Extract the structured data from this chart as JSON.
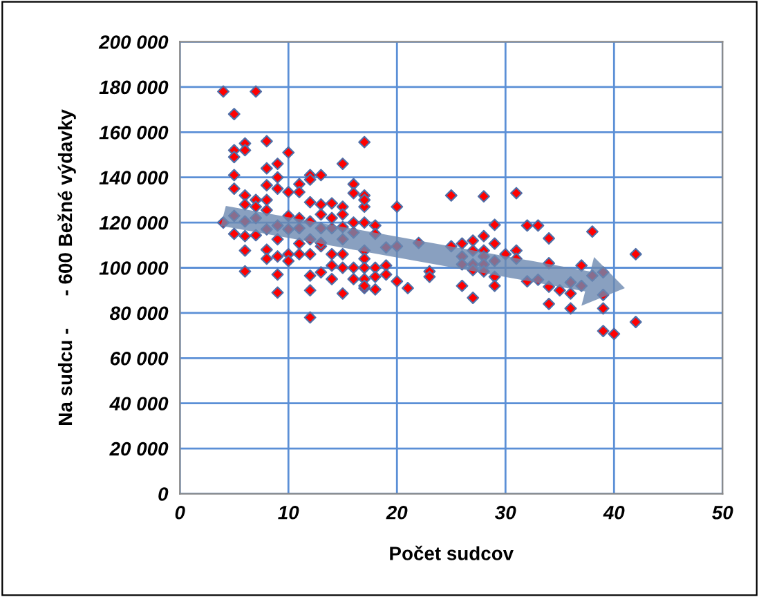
{
  "chart_data": {
    "type": "scatter",
    "xlabel": "Počet sudcov",
    "ylabel": "Na sudcu -      - 600 Bežné výdavky",
    "xlim": [
      0,
      50
    ],
    "xticks": [
      0,
      10,
      20,
      30,
      40,
      50
    ],
    "ylim": [
      0,
      200000
    ],
    "yticks": [
      {
        "value": 0,
        "label": "0"
      },
      {
        "value": 20000,
        "label": "20 000"
      },
      {
        "value": 40000,
        "label": "40 000"
      },
      {
        "value": 60000,
        "label": "60 000"
      },
      {
        "value": 80000,
        "label": "80 000"
      },
      {
        "value": 100000,
        "label": "100 000"
      },
      {
        "value": 120000,
        "label": "120 000"
      },
      {
        "value": 140000,
        "label": "140 000"
      },
      {
        "value": 160000,
        "label": "160 000"
      },
      {
        "value": 180000,
        "label": "180 000"
      },
      {
        "value": 200000,
        "label": "200 000"
      }
    ],
    "grid": true,
    "marker": "diamond",
    "series": [
      {
        "color": "#ff0000",
        "x": [
          4,
          7,
          5,
          8,
          5,
          6,
          5,
          6,
          10,
          17,
          9,
          8,
          15,
          5,
          9,
          12,
          13,
          11,
          12,
          16,
          5,
          8,
          9,
          10,
          11,
          6,
          7,
          8,
          6,
          7,
          8,
          12,
          13,
          14,
          15,
          16,
          4,
          5,
          6,
          7,
          8,
          9,
          10,
          11,
          12,
          13,
          14,
          15,
          16,
          10,
          11,
          13,
          14,
          15,
          16,
          5,
          6,
          6,
          9,
          9,
          12,
          12,
          8,
          8,
          9,
          10,
          10,
          11,
          12,
          12,
          13,
          13,
          14,
          14,
          15,
          15,
          14,
          15,
          16,
          17,
          17,
          16,
          15,
          6,
          7,
          9,
          11,
          12,
          13,
          17,
          17,
          17,
          17,
          20,
          25,
          28,
          31,
          29,
          32,
          33,
          18,
          18,
          19,
          20,
          22,
          25,
          26,
          27,
          28,
          29,
          27,
          28,
          26,
          28,
          29,
          30,
          31,
          31,
          26,
          27,
          28,
          27,
          28,
          29,
          17,
          17,
          17,
          17,
          17,
          18,
          18,
          18,
          19,
          19,
          20,
          21,
          23,
          23,
          26,
          27,
          29,
          32,
          33,
          34,
          38,
          42,
          34,
          37,
          38,
          39,
          36,
          37,
          34,
          35,
          36,
          39,
          34,
          36,
          39,
          42,
          39,
          40
        ],
        "values": [
          178000,
          178000,
          168000,
          156000,
          152000,
          155000,
          149000,
          152000,
          151000,
          155600,
          146000,
          144000,
          146000,
          141000,
          140000,
          141000,
          141000,
          137000,
          139000,
          137000,
          135000,
          136500,
          135000,
          133500,
          133500,
          132000,
          130000,
          130000,
          128000,
          127000,
          125500,
          129000,
          128000,
          128500,
          127000,
          133000,
          120000,
          123000,
          120500,
          122000,
          117000,
          118700,
          123000,
          122000,
          120500,
          123600,
          122000,
          123600,
          120000,
          117000,
          117500,
          117500,
          117500,
          118000,
          115600,
          115000,
          107600,
          98400,
          97000,
          89000,
          90000,
          78000,
          108000,
          104000,
          105000,
          106000,
          103000,
          106000,
          106000,
          96500,
          109500,
          98000,
          106000,
          101000,
          106000,
          100000,
          95000,
          88600,
          95000,
          100000,
          91000,
          100000,
          112600,
          114000,
          114400,
          112600,
          110700,
          112600,
          111000,
          132000,
          127000,
          120000,
          107600,
          127000,
          132000,
          131600,
          133000,
          119000,
          118700,
          118700,
          118700,
          115000,
          109000,
          109500,
          111000,
          109500,
          110700,
          112000,
          114000,
          110700,
          107600,
          107600,
          105000,
          105000,
          103000,
          106000,
          107600,
          104000,
          101500,
          101500,
          101500,
          99000,
          98400,
          96000,
          104000,
          95000,
          92000,
          130000,
          100000,
          100000,
          96000,
          90400,
          101000,
          97000,
          94000,
          91000,
          98400,
          96000,
          92000,
          86700,
          92000,
          94000,
          94700,
          113000,
          116000,
          106000,
          102000,
          101000,
          96500,
          98000,
          93500,
          92000,
          91600,
          90000,
          88600,
          88000,
          84000,
          82000,
          82000,
          76000,
          72000,
          70700
        ]
      }
    ]
  }
}
